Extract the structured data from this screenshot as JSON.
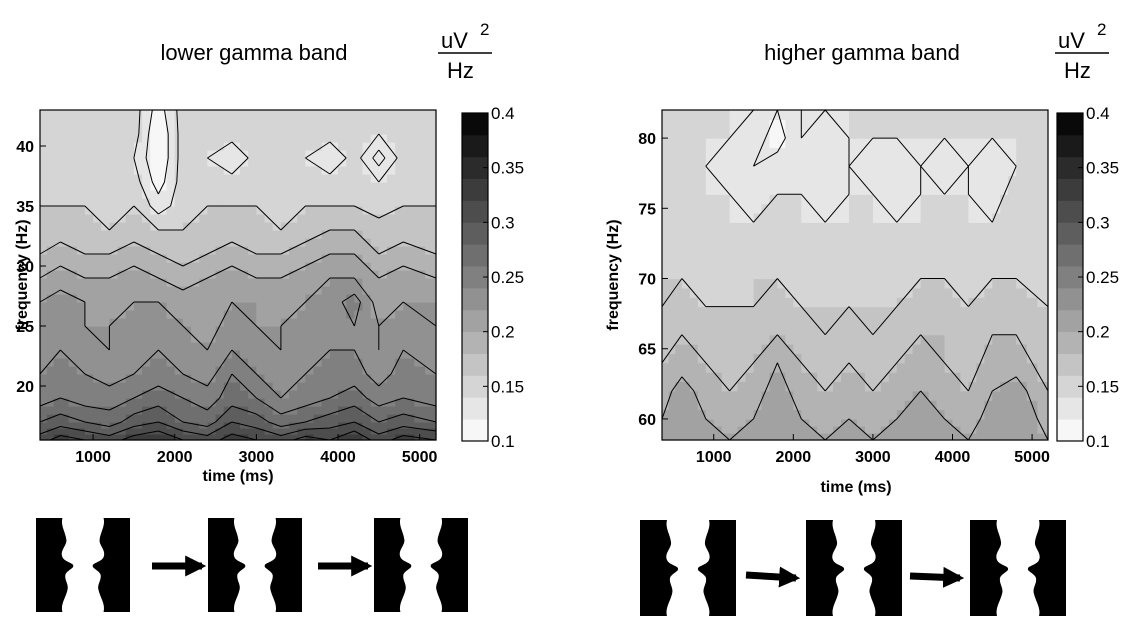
{
  "chart_data": [
    {
      "type": "heatmap",
      "title": "lower gamma band",
      "xlabel": "time (ms)",
      "ylabel": "frequency (Hz)",
      "xlim": [
        350,
        5200
      ],
      "ylim": [
        15.5,
        43
      ],
      "xticks": [
        1000,
        2000,
        3000,
        4000,
        5000
      ],
      "yticks": [
        20,
        25,
        30,
        35,
        40
      ],
      "colorbar": {
        "unit_num": "uV",
        "unit_exp": "2",
        "unit_den": "Hz",
        "range": [
          0.1,
          0.4
        ],
        "ticks": [
          "0.1",
          "0.15",
          "0.2",
          "0.25",
          "0.3",
          "0.35",
          "0.4"
        ],
        "levels": 15
      },
      "x": [
        350,
        600,
        900,
        1200,
        1500,
        1800,
        2100,
        2400,
        2700,
        3000,
        3300,
        3600,
        3900,
        4200,
        4500,
        4800,
        5200
      ],
      "y": [
        15.5,
        17,
        19,
        21,
        23,
        25,
        27,
        29,
        31,
        33,
        35,
        37,
        39,
        41,
        43
      ],
      "z": [
        [
          0.31,
          0.33,
          0.32,
          0.31,
          0.33,
          0.34,
          0.32,
          0.31,
          0.33,
          0.32,
          0.31,
          0.33,
          0.32,
          0.34,
          0.31,
          0.33,
          0.32
        ],
        [
          0.28,
          0.29,
          0.28,
          0.27,
          0.29,
          0.3,
          0.28,
          0.27,
          0.3,
          0.29,
          0.27,
          0.28,
          0.29,
          0.3,
          0.28,
          0.29,
          0.28
        ],
        [
          0.25,
          0.26,
          0.25,
          0.25,
          0.26,
          0.27,
          0.26,
          0.25,
          0.27,
          0.26,
          0.24,
          0.25,
          0.26,
          0.27,
          0.25,
          0.26,
          0.25
        ],
        [
          0.24,
          0.25,
          0.24,
          0.23,
          0.24,
          0.25,
          0.24,
          0.23,
          0.26,
          0.24,
          0.23,
          0.24,
          0.25,
          0.25,
          0.23,
          0.25,
          0.24
        ],
        [
          0.23,
          0.24,
          0.23,
          0.22,
          0.23,
          0.24,
          0.23,
          0.22,
          0.24,
          0.23,
          0.22,
          0.23,
          0.24,
          0.24,
          0.22,
          0.24,
          0.23
        ],
        [
          0.23,
          0.23,
          0.22,
          0.22,
          0.23,
          0.23,
          0.22,
          0.21,
          0.23,
          0.22,
          0.22,
          0.23,
          0.23,
          0.24,
          0.22,
          0.23,
          0.22
        ],
        [
          0.22,
          0.23,
          0.22,
          0.21,
          0.22,
          0.22,
          0.21,
          0.21,
          0.22,
          0.22,
          0.21,
          0.22,
          0.23,
          0.25,
          0.21,
          0.22,
          0.22
        ],
        [
          0.2,
          0.21,
          0.2,
          0.2,
          0.21,
          0.2,
          0.19,
          0.2,
          0.21,
          0.2,
          0.2,
          0.21,
          0.22,
          0.22,
          0.2,
          0.21,
          0.2
        ],
        [
          0.18,
          0.19,
          0.18,
          0.18,
          0.19,
          0.18,
          0.17,
          0.18,
          0.19,
          0.18,
          0.18,
          0.19,
          0.2,
          0.2,
          0.18,
          0.19,
          0.18
        ],
        [
          0.17,
          0.17,
          0.17,
          0.16,
          0.17,
          0.16,
          0.16,
          0.17,
          0.17,
          0.17,
          0.16,
          0.17,
          0.18,
          0.18,
          0.17,
          0.17,
          0.17
        ],
        [
          0.16,
          0.16,
          0.16,
          0.15,
          0.16,
          0.13,
          0.15,
          0.16,
          0.16,
          0.16,
          0.15,
          0.16,
          0.16,
          0.16,
          0.15,
          0.16,
          0.16
        ],
        [
          0.15,
          0.16,
          0.15,
          0.15,
          0.15,
          0.11,
          0.15,
          0.15,
          0.15,
          0.15,
          0.15,
          0.15,
          0.15,
          0.15,
          0.14,
          0.15,
          0.15
        ],
        [
          0.15,
          0.15,
          0.15,
          0.15,
          0.14,
          0.1,
          0.15,
          0.14,
          0.12,
          0.15,
          0.15,
          0.14,
          0.12,
          0.15,
          0.11,
          0.15,
          0.15
        ],
        [
          0.15,
          0.15,
          0.15,
          0.15,
          0.15,
          0.1,
          0.15,
          0.15,
          0.15,
          0.15,
          0.15,
          0.15,
          0.15,
          0.15,
          0.14,
          0.15,
          0.15
        ],
        [
          0.15,
          0.15,
          0.15,
          0.15,
          0.15,
          0.11,
          0.15,
          0.15,
          0.15,
          0.15,
          0.15,
          0.15,
          0.15,
          0.15,
          0.15,
          0.15,
          0.15
        ]
      ]
    },
    {
      "type": "heatmap",
      "title": "higher gamma band",
      "xlabel": "time (ms)",
      "ylabel": "frequency (Hz)",
      "xlim": [
        350,
        5200
      ],
      "ylim": [
        58.5,
        82
      ],
      "xticks": [
        1000,
        2000,
        3000,
        4000,
        5000
      ],
      "yticks": [
        60,
        65,
        70,
        75,
        80
      ],
      "colorbar": {
        "unit_num": "uV",
        "unit_exp": "2",
        "unit_den": "Hz",
        "range": [
          0.1,
          0.4
        ],
        "ticks": [
          "0.1",
          "0.15",
          "0.2",
          "0.25",
          "0.3",
          "0.35",
          "0.4"
        ],
        "levels": 15
      },
      "x": [
        350,
        600,
        900,
        1200,
        1500,
        1800,
        2100,
        2400,
        2700,
        3000,
        3300,
        3600,
        3900,
        4200,
        4500,
        4800,
        5200
      ],
      "y": [
        58.5,
        60,
        62,
        64,
        66,
        68,
        70,
        72,
        74,
        76,
        78,
        80,
        82
      ],
      "z": [
        [
          0.21,
          0.22,
          0.21,
          0.2,
          0.21,
          0.22,
          0.21,
          0.2,
          0.21,
          0.2,
          0.21,
          0.22,
          0.21,
          0.2,
          0.22,
          0.21,
          0.2
        ],
        [
          0.2,
          0.22,
          0.2,
          0.19,
          0.2,
          0.22,
          0.2,
          0.19,
          0.2,
          0.19,
          0.2,
          0.21,
          0.2,
          0.19,
          0.21,
          0.22,
          0.19
        ],
        [
          0.19,
          0.21,
          0.19,
          0.18,
          0.19,
          0.21,
          0.19,
          0.18,
          0.19,
          0.18,
          0.19,
          0.2,
          0.19,
          0.18,
          0.2,
          0.21,
          0.18
        ],
        [
          0.18,
          0.19,
          0.18,
          0.17,
          0.18,
          0.2,
          0.18,
          0.17,
          0.18,
          0.17,
          0.18,
          0.19,
          0.18,
          0.17,
          0.19,
          0.19,
          0.17
        ],
        [
          0.17,
          0.18,
          0.17,
          0.17,
          0.17,
          0.18,
          0.17,
          0.16,
          0.17,
          0.16,
          0.17,
          0.18,
          0.18,
          0.17,
          0.18,
          0.18,
          0.16
        ],
        [
          0.16,
          0.17,
          0.16,
          0.16,
          0.16,
          0.17,
          0.16,
          0.16,
          0.16,
          0.16,
          0.16,
          0.17,
          0.17,
          0.16,
          0.17,
          0.17,
          0.16
        ],
        [
          0.16,
          0.16,
          0.15,
          0.15,
          0.16,
          0.16,
          0.15,
          0.15,
          0.16,
          0.15,
          0.15,
          0.16,
          0.16,
          0.15,
          0.16,
          0.16,
          0.15
        ],
        [
          0.15,
          0.15,
          0.15,
          0.14,
          0.15,
          0.15,
          0.15,
          0.14,
          0.15,
          0.15,
          0.14,
          0.15,
          0.15,
          0.15,
          0.15,
          0.15,
          0.14
        ],
        [
          0.14,
          0.15,
          0.14,
          0.14,
          0.14,
          0.15,
          0.14,
          0.14,
          0.14,
          0.14,
          0.14,
          0.14,
          0.15,
          0.14,
          0.14,
          0.15,
          0.14
        ],
        [
          0.14,
          0.15,
          0.14,
          0.14,
          0.13,
          0.14,
          0.14,
          0.13,
          0.14,
          0.14,
          0.13,
          0.14,
          0.14,
          0.14,
          0.13,
          0.15,
          0.14
        ],
        [
          0.14,
          0.15,
          0.14,
          0.13,
          0.12,
          0.13,
          0.13,
          0.13,
          0.14,
          0.13,
          0.13,
          0.14,
          0.13,
          0.14,
          0.13,
          0.14,
          0.14
        ],
        [
          0.14,
          0.14,
          0.14,
          0.14,
          0.13,
          0.11,
          0.14,
          0.13,
          0.14,
          0.14,
          0.14,
          0.14,
          0.14,
          0.14,
          0.14,
          0.14,
          0.14
        ],
        [
          0.14,
          0.14,
          0.14,
          0.14,
          0.14,
          0.12,
          0.14,
          0.14,
          0.14,
          0.14,
          0.14,
          0.14,
          0.14,
          0.14,
          0.14,
          0.14,
          0.14
        ]
      ]
    }
  ],
  "stimulus_panels": [
    {
      "frames": 3,
      "shape": "faces-vase"
    },
    {
      "frames": 3,
      "shape": "faces-vase"
    }
  ],
  "icons": {
    "frame": "faces-vase-icon",
    "transition": "arrow-right-icon"
  },
  "colors": {
    "background": "#ffffff",
    "contour_line": "#000000",
    "colormap_low": "#ffffff",
    "colormap_high": "#000000"
  }
}
